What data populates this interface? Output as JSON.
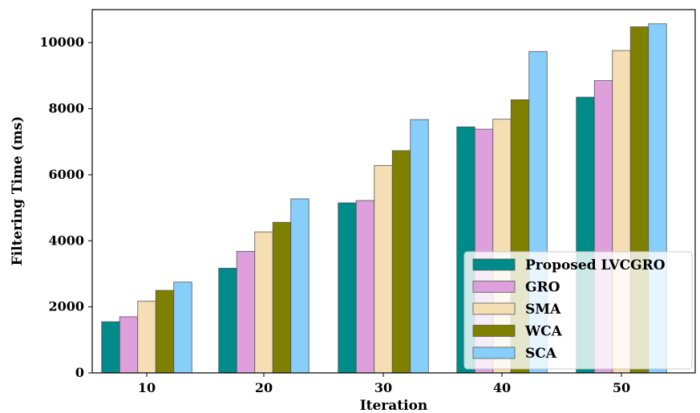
{
  "chart_data": {
    "type": "bar",
    "xlabel": "Iteration",
    "ylabel": "Filtering Time (ms)",
    "categories": [
      "10",
      "20",
      "30",
      "40",
      "50"
    ],
    "ylim": [
      0,
      11000
    ],
    "yticks": [
      0,
      2000,
      4000,
      6000,
      8000,
      10000
    ],
    "grid": false,
    "legend_position": "bottom-right",
    "series": [
      {
        "name": "Proposed LVCGRO",
        "color": "#008b8b",
        "values": [
          1550,
          3170,
          5150,
          7450,
          8350
        ]
      },
      {
        "name": "GRO",
        "color": "#dda0dd",
        "values": [
          1700,
          3680,
          5220,
          7380,
          8850
        ]
      },
      {
        "name": "SMA",
        "color": "#f5deb3",
        "values": [
          2170,
          4270,
          6280,
          7680,
          9760
        ]
      },
      {
        "name": "WCA",
        "color": "#808000",
        "values": [
          2500,
          4560,
          6730,
          8270,
          10480
        ]
      },
      {
        "name": "SCA",
        "color": "#87cefa",
        "values": [
          2750,
          5270,
          7670,
          9730,
          10570
        ]
      }
    ]
  }
}
